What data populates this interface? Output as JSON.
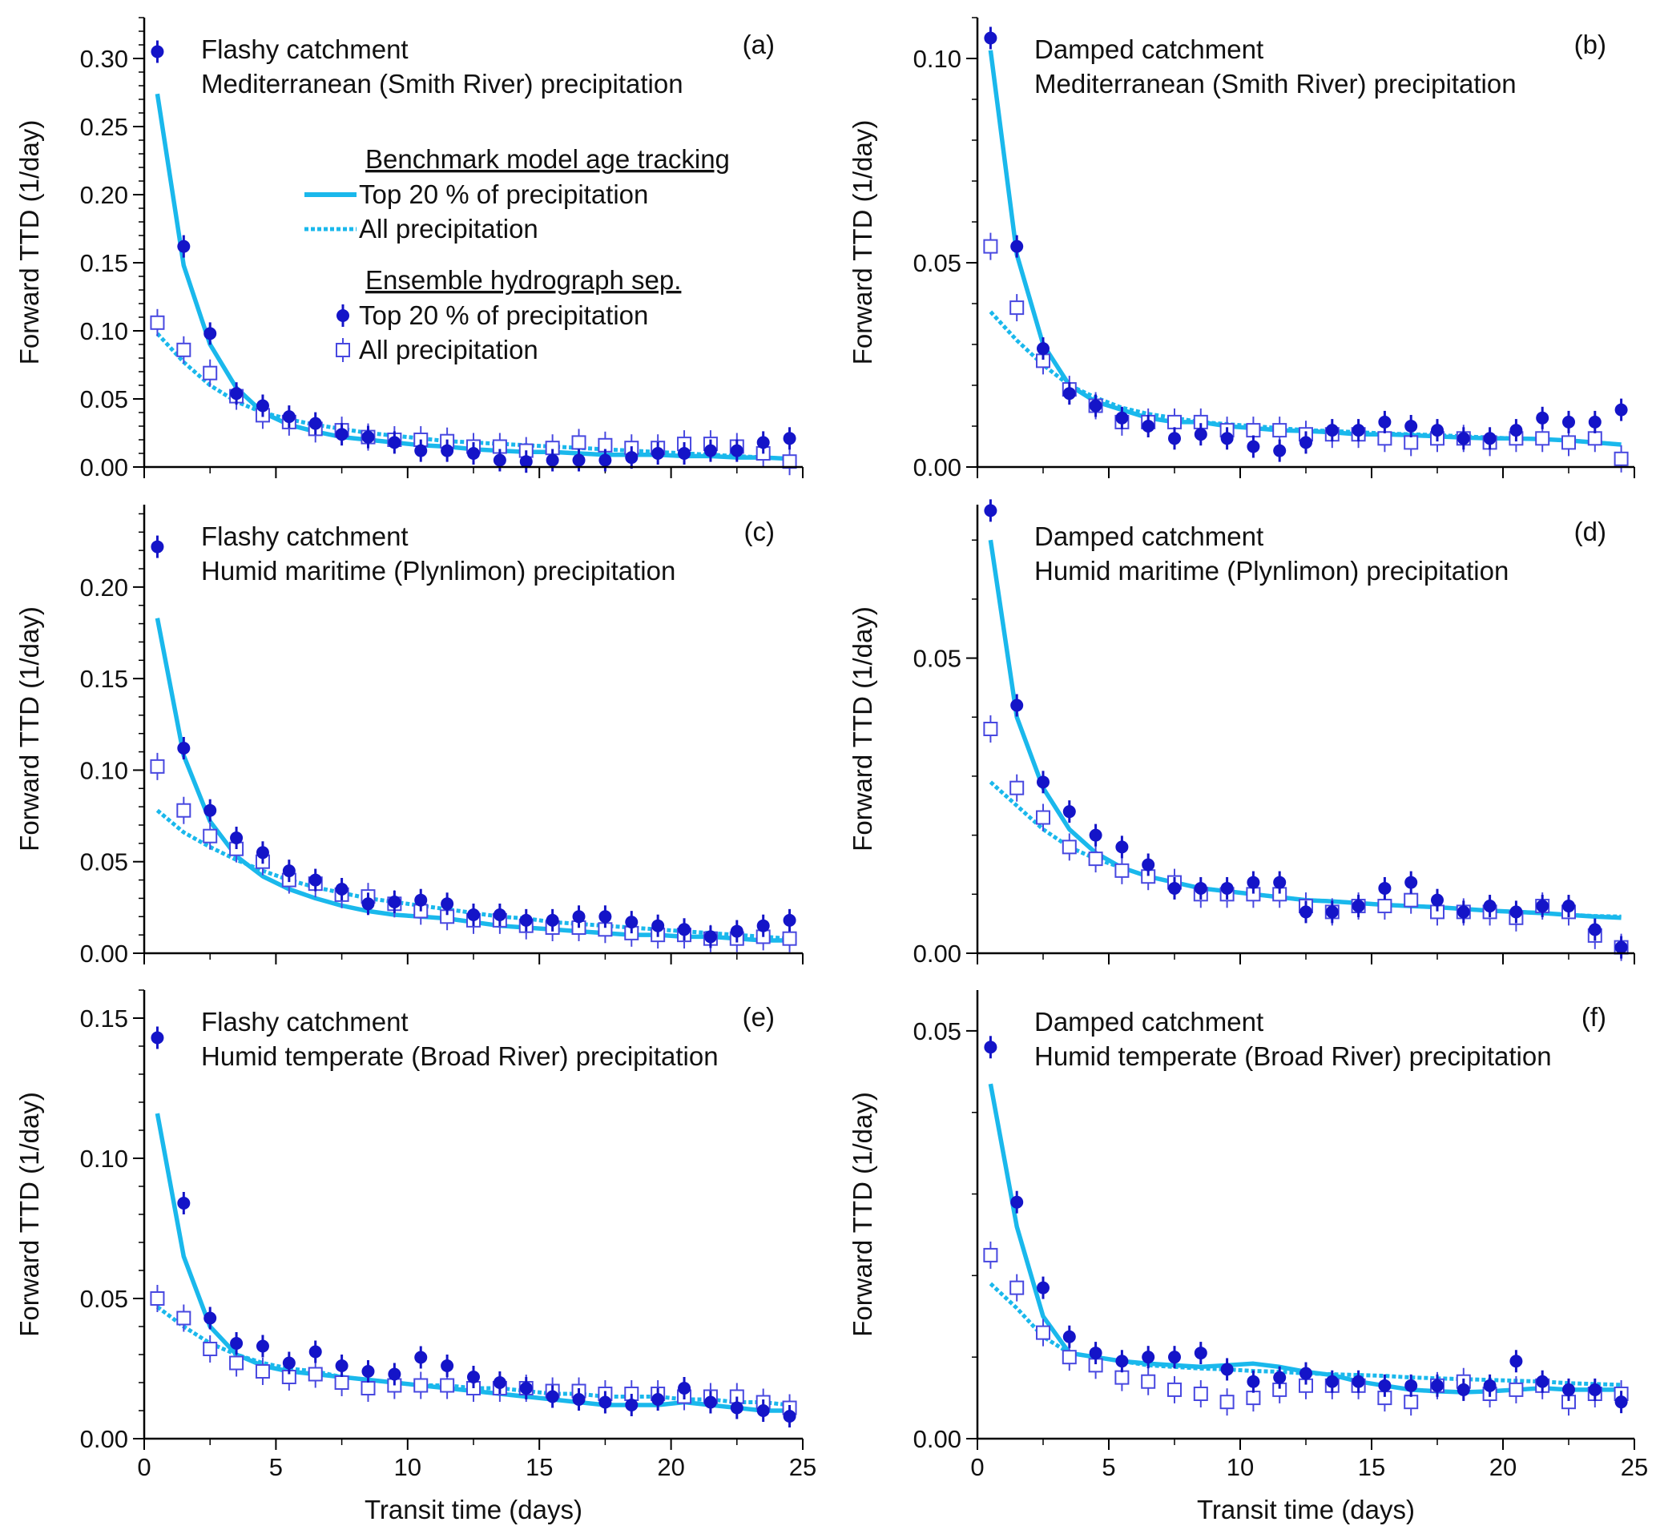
{
  "figure": {
    "legend": {
      "model_header": "Benchmark model age tracking",
      "model_top": "Top 20 % of precipitation",
      "model_all": "All precipitation",
      "sep_header": "Ensemble hydrograph sep.",
      "sep_top": "Top 20 % of precipitation",
      "sep_all": "All precipitation"
    },
    "colors": {
      "model_line": "#1ab8ec",
      "points": "#1414c8",
      "open_square": "#4848e0"
    }
  },
  "chart_data": [
    {
      "type": "line",
      "panel_label": "(a)",
      "annotation_line1": "Flashy catchment",
      "annotation_line2": "Mediterranean (Smith River) precipitation",
      "xlabel": "Transit time (days)",
      "ylabel": "Forward TTD (1/day)",
      "xlim": [
        0,
        25
      ],
      "ylim": [
        0,
        0.33
      ],
      "xticks": [
        0,
        5,
        10,
        15,
        20,
        25
      ],
      "yticks": [
        0.0,
        0.05,
        0.1,
        0.15,
        0.2,
        0.25,
        0.3
      ],
      "ytick_labels": [
        "0.00",
        "0.05",
        "0.10",
        "0.15",
        "0.20",
        "0.25",
        "0.30"
      ],
      "show_x_ticklabels": false,
      "show_xlabel": false,
      "x": [
        0.5,
        1.5,
        2.5,
        3.5,
        4.5,
        5.5,
        6.5,
        7.5,
        8.5,
        9.5,
        10.5,
        11.5,
        12.5,
        13.5,
        14.5,
        15.5,
        16.5,
        17.5,
        18.5,
        19.5,
        20.5,
        21.5,
        22.5,
        23.5,
        24.5
      ],
      "model_top20": [
        0.274,
        0.148,
        0.09,
        0.058,
        0.04,
        0.031,
        0.026,
        0.022,
        0.02,
        0.018,
        0.016,
        0.015,
        0.013,
        0.012,
        0.011,
        0.011,
        0.01,
        0.009,
        0.009,
        0.009,
        0.008,
        0.008,
        0.007,
        0.007,
        0.006
      ],
      "model_all": [
        0.098,
        0.077,
        0.06,
        0.048,
        0.04,
        0.035,
        0.031,
        0.028,
        0.025,
        0.023,
        0.021,
        0.019,
        0.018,
        0.017,
        0.016,
        0.015,
        0.014,
        0.013,
        0.012,
        0.011,
        0.01,
        0.009,
        0.008,
        0.007,
        0.006
      ],
      "sep_top20": [
        0.305,
        0.162,
        0.098,
        0.054,
        0.045,
        0.037,
        0.032,
        0.024,
        0.022,
        0.018,
        0.012,
        0.012,
        0.01,
        0.005,
        0.004,
        0.005,
        0.005,
        0.005,
        0.007,
        0.01,
        0.01,
        0.012,
        0.012,
        0.018,
        0.021
      ],
      "sep_all": [
        0.106,
        0.086,
        0.069,
        0.052,
        0.038,
        0.033,
        0.028,
        0.027,
        0.022,
        0.02,
        0.02,
        0.019,
        0.015,
        0.015,
        0.012,
        0.014,
        0.018,
        0.016,
        0.014,
        0.014,
        0.017,
        0.017,
        0.015,
        0.01,
        0.004
      ]
    },
    {
      "type": "line",
      "panel_label": "(b)",
      "annotation_line1": "Damped catchment",
      "annotation_line2": "Mediterranean (Smith River) precipitation",
      "xlabel": "Transit time (days)",
      "ylabel": "Forward TTD (1/day)",
      "xlim": [
        0,
        25
      ],
      "ylim": [
        0,
        0.11
      ],
      "xticks": [
        0,
        5,
        10,
        15,
        20,
        25
      ],
      "yticks": [
        0.0,
        0.05,
        0.1
      ],
      "ytick_labels": [
        "0.00",
        "0.05",
        "0.10"
      ],
      "show_x_ticklabels": false,
      "show_xlabel": false,
      "x": [
        0.5,
        1.5,
        2.5,
        3.5,
        4.5,
        5.5,
        6.5,
        7.5,
        8.5,
        9.5,
        10.5,
        11.5,
        12.5,
        13.5,
        14.5,
        15.5,
        16.5,
        17.5,
        18.5,
        19.5,
        20.5,
        21.5,
        22.5,
        23.5,
        24.5
      ],
      "model_top20": [
        0.102,
        0.052,
        0.03,
        0.02,
        0.016,
        0.014,
        0.012,
        0.011,
        0.011,
        0.01,
        0.0095,
        0.009,
        0.0088,
        0.0085,
        0.008,
        0.008,
        0.0078,
        0.0075,
        0.0072,
        0.007,
        0.007,
        0.0068,
        0.0065,
        0.006,
        0.0055
      ],
      "model_all": [
        0.038,
        0.031,
        0.025,
        0.02,
        0.017,
        0.0145,
        0.013,
        0.012,
        0.011,
        0.0105,
        0.01,
        0.0095,
        0.009,
        0.0088,
        0.0085,
        0.0082,
        0.008,
        0.0078,
        0.0075,
        0.0072,
        0.007,
        0.0068,
        0.0065,
        0.006,
        0.0055
      ],
      "sep_top20": [
        0.105,
        0.054,
        0.029,
        0.018,
        0.015,
        0.012,
        0.01,
        0.007,
        0.008,
        0.007,
        0.005,
        0.004,
        0.006,
        0.009,
        0.009,
        0.011,
        0.01,
        0.009,
        0.007,
        0.007,
        0.009,
        0.012,
        0.011,
        0.011,
        0.014
      ],
      "sep_all": [
        0.054,
        0.039,
        0.026,
        0.019,
        0.015,
        0.011,
        0.011,
        0.011,
        0.011,
        0.009,
        0.009,
        0.009,
        0.008,
        0.008,
        0.008,
        0.007,
        0.006,
        0.007,
        0.007,
        0.006,
        0.007,
        0.007,
        0.006,
        0.007,
        0.002
      ]
    },
    {
      "type": "line",
      "panel_label": "(c)",
      "annotation_line1": "Flashy catchment",
      "annotation_line2": "Humid maritime (Plynlimon) precipitation",
      "xlabel": "Transit time (days)",
      "ylabel": "Forward TTD (1/day)",
      "xlim": [
        0,
        25
      ],
      "ylim": [
        0,
        0.245
      ],
      "xticks": [
        0,
        5,
        10,
        15,
        20,
        25
      ],
      "yticks": [
        0.0,
        0.05,
        0.1,
        0.15,
        0.2
      ],
      "ytick_labels": [
        "0.00",
        "0.05",
        "0.10",
        "0.15",
        "0.20"
      ],
      "show_x_ticklabels": false,
      "show_xlabel": false,
      "x": [
        0.5,
        1.5,
        2.5,
        3.5,
        4.5,
        5.5,
        6.5,
        7.5,
        8.5,
        9.5,
        10.5,
        11.5,
        12.5,
        13.5,
        14.5,
        15.5,
        16.5,
        17.5,
        18.5,
        19.5,
        20.5,
        21.5,
        22.5,
        23.5,
        24.5
      ],
      "model_top20": [
        0.183,
        0.108,
        0.072,
        0.053,
        0.042,
        0.035,
        0.03,
        0.026,
        0.023,
        0.021,
        0.02,
        0.019,
        0.017,
        0.015,
        0.014,
        0.013,
        0.012,
        0.011,
        0.01,
        0.01,
        0.009,
        0.009,
        0.008,
        0.007,
        0.007
      ],
      "model_all": [
        0.078,
        0.066,
        0.058,
        0.051,
        0.045,
        0.04,
        0.036,
        0.033,
        0.03,
        0.028,
        0.026,
        0.024,
        0.022,
        0.02,
        0.019,
        0.017,
        0.016,
        0.015,
        0.014,
        0.013,
        0.012,
        0.011,
        0.01,
        0.009,
        0.008
      ],
      "sep_top20": [
        0.222,
        0.112,
        0.078,
        0.063,
        0.055,
        0.045,
        0.04,
        0.035,
        0.027,
        0.028,
        0.029,
        0.027,
        0.021,
        0.021,
        0.018,
        0.018,
        0.02,
        0.02,
        0.017,
        0.015,
        0.013,
        0.009,
        0.012,
        0.015,
        0.018
      ],
      "sep_all": [
        0.102,
        0.078,
        0.064,
        0.057,
        0.05,
        0.04,
        0.038,
        0.032,
        0.031,
        0.027,
        0.023,
        0.02,
        0.018,
        0.018,
        0.015,
        0.014,
        0.014,
        0.013,
        0.011,
        0.01,
        0.01,
        0.008,
        0.008,
        0.009,
        0.008
      ]
    },
    {
      "type": "line",
      "panel_label": "(d)",
      "annotation_line1": "Damped catchment",
      "annotation_line2": "Humid maritime (Plynlimon) precipitation",
      "xlabel": "Transit time (days)",
      "ylabel": "Forward TTD (1/day)",
      "xlim": [
        0,
        25
      ],
      "ylim": [
        0,
        0.076
      ],
      "xticks": [
        0,
        5,
        10,
        15,
        20,
        25
      ],
      "yticks": [
        0.0,
        0.05
      ],
      "ytick_labels": [
        "0.00",
        "0.05"
      ],
      "show_x_ticklabels": false,
      "show_xlabel": false,
      "x": [
        0.5,
        1.5,
        2.5,
        3.5,
        4.5,
        5.5,
        6.5,
        7.5,
        8.5,
        9.5,
        10.5,
        11.5,
        12.5,
        13.5,
        14.5,
        15.5,
        16.5,
        17.5,
        18.5,
        19.5,
        20.5,
        21.5,
        22.5,
        23.5,
        24.5
      ],
      "model_top20": [
        0.07,
        0.04,
        0.028,
        0.021,
        0.017,
        0.0145,
        0.013,
        0.012,
        0.011,
        0.0105,
        0.01,
        0.0095,
        0.009,
        0.0088,
        0.0085,
        0.0082,
        0.008,
        0.0078,
        0.0075,
        0.0072,
        0.007,
        0.0068,
        0.0065,
        0.0062,
        0.006
      ],
      "model_all": [
        0.029,
        0.025,
        0.021,
        0.018,
        0.016,
        0.0145,
        0.013,
        0.012,
        0.011,
        0.0105,
        0.01,
        0.0095,
        0.009,
        0.0088,
        0.0085,
        0.0082,
        0.008,
        0.0078,
        0.0075,
        0.0072,
        0.007,
        0.0068,
        0.0065,
        0.0063,
        0.0062
      ],
      "sep_top20": [
        0.075,
        0.042,
        0.029,
        0.024,
        0.02,
        0.018,
        0.015,
        0.011,
        0.011,
        0.011,
        0.012,
        0.012,
        0.007,
        0.007,
        0.008,
        0.011,
        0.012,
        0.009,
        0.007,
        0.008,
        0.007,
        0.008,
        0.008,
        0.004,
        0.001
      ],
      "sep_all": [
        0.038,
        0.028,
        0.023,
        0.018,
        0.016,
        0.014,
        0.013,
        0.012,
        0.01,
        0.01,
        0.01,
        0.01,
        0.008,
        0.007,
        0.008,
        0.008,
        0.009,
        0.007,
        0.007,
        0.007,
        0.006,
        0.008,
        0.007,
        0.003,
        0.001
      ]
    },
    {
      "type": "line",
      "panel_label": "(e)",
      "annotation_line1": "Flashy catchment",
      "annotation_line2": "Humid temperate (Broad River) precipitation",
      "xlabel": "Transit time (days)",
      "ylabel": "Forward TTD (1/day)",
      "xlim": [
        0,
        25
      ],
      "ylim": [
        0,
        0.16
      ],
      "xticks": [
        0,
        5,
        10,
        15,
        20,
        25
      ],
      "yticks": [
        0.0,
        0.05,
        0.1,
        0.15
      ],
      "ytick_labels": [
        "0.00",
        "0.05",
        "0.10",
        "0.15"
      ],
      "show_x_ticklabels": true,
      "show_xlabel": true,
      "x": [
        0.5,
        1.5,
        2.5,
        3.5,
        4.5,
        5.5,
        6.5,
        7.5,
        8.5,
        9.5,
        10.5,
        11.5,
        12.5,
        13.5,
        14.5,
        15.5,
        16.5,
        17.5,
        18.5,
        19.5,
        20.5,
        21.5,
        22.5,
        23.5,
        24.5
      ],
      "model_top20": [
        0.116,
        0.065,
        0.04,
        0.03,
        0.026,
        0.024,
        0.023,
        0.022,
        0.021,
        0.02,
        0.019,
        0.018,
        0.017,
        0.016,
        0.015,
        0.014,
        0.013,
        0.012,
        0.012,
        0.012,
        0.013,
        0.012,
        0.011,
        0.01,
        0.01
      ],
      "model_all": [
        0.047,
        0.04,
        0.034,
        0.03,
        0.027,
        0.025,
        0.024,
        0.022,
        0.021,
        0.02,
        0.019,
        0.019,
        0.018,
        0.018,
        0.017,
        0.016,
        0.016,
        0.015,
        0.015,
        0.015,
        0.014,
        0.014,
        0.013,
        0.013,
        0.012
      ],
      "sep_top20": [
        0.143,
        0.084,
        0.043,
        0.034,
        0.033,
        0.027,
        0.031,
        0.026,
        0.024,
        0.023,
        0.029,
        0.026,
        0.022,
        0.02,
        0.018,
        0.015,
        0.014,
        0.013,
        0.012,
        0.014,
        0.018,
        0.013,
        0.011,
        0.01,
        0.008
      ],
      "sep_all": [
        0.05,
        0.043,
        0.032,
        0.027,
        0.024,
        0.022,
        0.023,
        0.02,
        0.018,
        0.019,
        0.019,
        0.019,
        0.018,
        0.018,
        0.018,
        0.017,
        0.017,
        0.016,
        0.016,
        0.016,
        0.015,
        0.015,
        0.015,
        0.013,
        0.011
      ]
    },
    {
      "type": "line",
      "panel_label": "(f)",
      "annotation_line1": "Damped catchment",
      "annotation_line2": "Humid temperate (Broad River) precipitation",
      "xlabel": "Transit time (days)",
      "ylabel": "Forward TTD (1/day)",
      "xlim": [
        0,
        25
      ],
      "ylim": [
        0,
        0.055
      ],
      "xticks": [
        0,
        5,
        10,
        15,
        20,
        25
      ],
      "yticks": [
        0.0,
        0.05
      ],
      "ytick_labels": [
        "0.00",
        "0.05"
      ],
      "show_x_ticklabels": true,
      "show_xlabel": true,
      "x": [
        0.5,
        1.5,
        2.5,
        3.5,
        4.5,
        5.5,
        6.5,
        7.5,
        8.5,
        9.5,
        10.5,
        11.5,
        12.5,
        13.5,
        14.5,
        15.5,
        16.5,
        17.5,
        18.5,
        19.5,
        20.5,
        21.5,
        22.5,
        23.5,
        24.5
      ],
      "model_top20": [
        0.0435,
        0.026,
        0.015,
        0.0105,
        0.01,
        0.0095,
        0.0092,
        0.009,
        0.0088,
        0.009,
        0.0092,
        0.0088,
        0.0082,
        0.0078,
        0.007,
        0.0065,
        0.006,
        0.0058,
        0.0057,
        0.0058,
        0.006,
        0.0062,
        0.006,
        0.006,
        0.006
      ],
      "model_all": [
        0.019,
        0.016,
        0.0125,
        0.0105,
        0.01,
        0.0095,
        0.009,
        0.0088,
        0.0086,
        0.0085,
        0.0083,
        0.0082,
        0.008,
        0.0079,
        0.0078,
        0.0077,
        0.0075,
        0.0074,
        0.0073,
        0.0072,
        0.0071,
        0.007,
        0.0068,
        0.0067,
        0.0066
      ],
      "sep_top20": [
        0.048,
        0.029,
        0.0185,
        0.0125,
        0.0105,
        0.0095,
        0.01,
        0.01,
        0.0105,
        0.0085,
        0.007,
        0.0075,
        0.008,
        0.007,
        0.007,
        0.0065,
        0.0065,
        0.0065,
        0.006,
        0.0065,
        0.0095,
        0.007,
        0.006,
        0.006,
        0.0045
      ],
      "sep_all": [
        0.0225,
        0.0185,
        0.013,
        0.01,
        0.009,
        0.0075,
        0.007,
        0.006,
        0.0055,
        0.0045,
        0.005,
        0.006,
        0.0065,
        0.0065,
        0.0065,
        0.005,
        0.0045,
        0.0065,
        0.007,
        0.0055,
        0.006,
        0.0065,
        0.0045,
        0.0055,
        0.0055
      ]
    }
  ]
}
